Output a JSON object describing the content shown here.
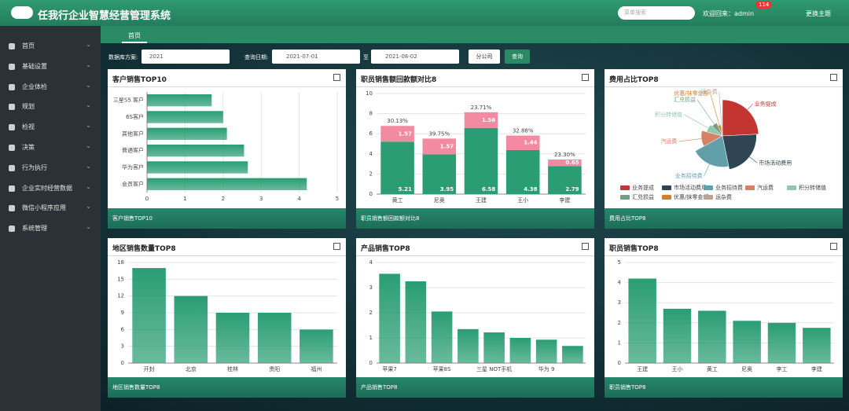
{
  "header": {
    "title": "任我行企业智慧经营管理系统",
    "search_placeholder": "菜单搜索",
    "welcome": "欢迎回来：admin",
    "badge": "114",
    "theme": "更换主题"
  },
  "menu": [
    "首页",
    "基础设置",
    "企业体检",
    "规划",
    "检视",
    "决策",
    "行为执行",
    "企业实时经营数据",
    "微信小程序应用",
    "系统管理"
  ],
  "tab": "首页",
  "filter": {
    "scheme_label": "数据库方案:",
    "scheme": "2021",
    "date_label": "查询日期:",
    "start": "2021-07-01",
    "to": "至",
    "end": "2021-08-02",
    "branch": "分公司",
    "query": "查询"
  },
  "chart_data": [
    {
      "type": "hbar",
      "title": "客户销售TOP10",
      "caption": "客户销售TOP10",
      "categories": [
        "三星S5 客户",
        "6S客户",
        "其他客户",
        "普通客户",
        "华为客户",
        "会员客户"
      ],
      "values": [
        1.7,
        2.0,
        2.1,
        2.55,
        2.65,
        4.2
      ],
      "color": "#2a9d74",
      "xlim": [
        0,
        5
      ],
      "xticks": [
        0,
        1,
        2,
        3,
        4,
        5
      ],
      "grid": true
    },
    {
      "type": "bar",
      "title": "职员销售额回款额对比8",
      "caption": "职员销售额回款额对比8",
      "categories": [
        "黄工",
        "尼奥",
        "王建",
        "王小",
        "李建"
      ],
      "series": [
        {
          "values": [
            5.21,
            3.95,
            6.58,
            4.38,
            2.79
          ],
          "color": "#2a9d74"
        },
        {
          "values": [
            1.57,
            1.57,
            1.56,
            1.44,
            0.65
          ],
          "color": "#f28ba1"
        }
      ],
      "annotations": [
        "30.13%",
        "39.75%",
        "23.71%",
        "32.88%",
        "23.30%"
      ],
      "ylim": [
        0,
        10
      ],
      "yticks": [
        0,
        2,
        4,
        6,
        8,
        10
      ],
      "grid": true
    },
    {
      "type": "pie",
      "title": "费用占比TOP8",
      "caption": "费用占比TOP8",
      "rose": true,
      "categories": [
        "业务提成",
        "市场活动费用",
        "业务招待费",
        "汽运费",
        "积分转储值",
        "汇兑损益",
        "优惠/抹零金额",
        "运杂费"
      ],
      "values": [
        30,
        28,
        25,
        15,
        10,
        8,
        5,
        3
      ],
      "colors": [
        "#c23531",
        "#2f4554",
        "#61a0a8",
        "#d48265",
        "#91c7ae",
        "#749f83",
        "#ca8622",
        "#bda29a"
      ]
    },
    {
      "type": "bar",
      "title": "地区销售数量TOP8",
      "caption": "地区销售数量TOP8",
      "categories": [
        "开封",
        "北京",
        "桂林",
        "贵阳",
        "福州"
      ],
      "values": [
        17,
        12,
        9,
        9,
        6
      ],
      "color": "#2a9d74",
      "ylim": [
        0,
        18
      ],
      "yticks": [
        0,
        3,
        6,
        9,
        12,
        15,
        18
      ],
      "grid": true
    },
    {
      "type": "bar",
      "title": "产品销售TOP8",
      "caption": "产品销售TOP8",
      "categories": [
        "苹果7",
        null,
        "苹果8S",
        null,
        "三星 NOT手机",
        null,
        "华为 9",
        null
      ],
      "values": [
        3.55,
        3.25,
        2.05,
        1.35,
        1.22,
        1.0,
        0.93,
        0.68
      ],
      "color": "#2a9d74",
      "ylim": [
        0,
        4
      ],
      "yticks": [
        0,
        1,
        2,
        3,
        4
      ],
      "grid": true
    },
    {
      "type": "bar",
      "title": "职员销售TOP8",
      "caption": "职员销售TOP8",
      "categories": [
        "王建",
        "王小",
        "黄工",
        "尼奥",
        "李工",
        "李建"
      ],
      "values": [
        4.2,
        2.7,
        2.6,
        2.1,
        2.0,
        1.75
      ],
      "color": "#2a9d74",
      "ylim": [
        0,
        5
      ],
      "yticks": [
        0,
        1,
        2,
        3,
        4,
        5
      ],
      "grid": true
    }
  ]
}
